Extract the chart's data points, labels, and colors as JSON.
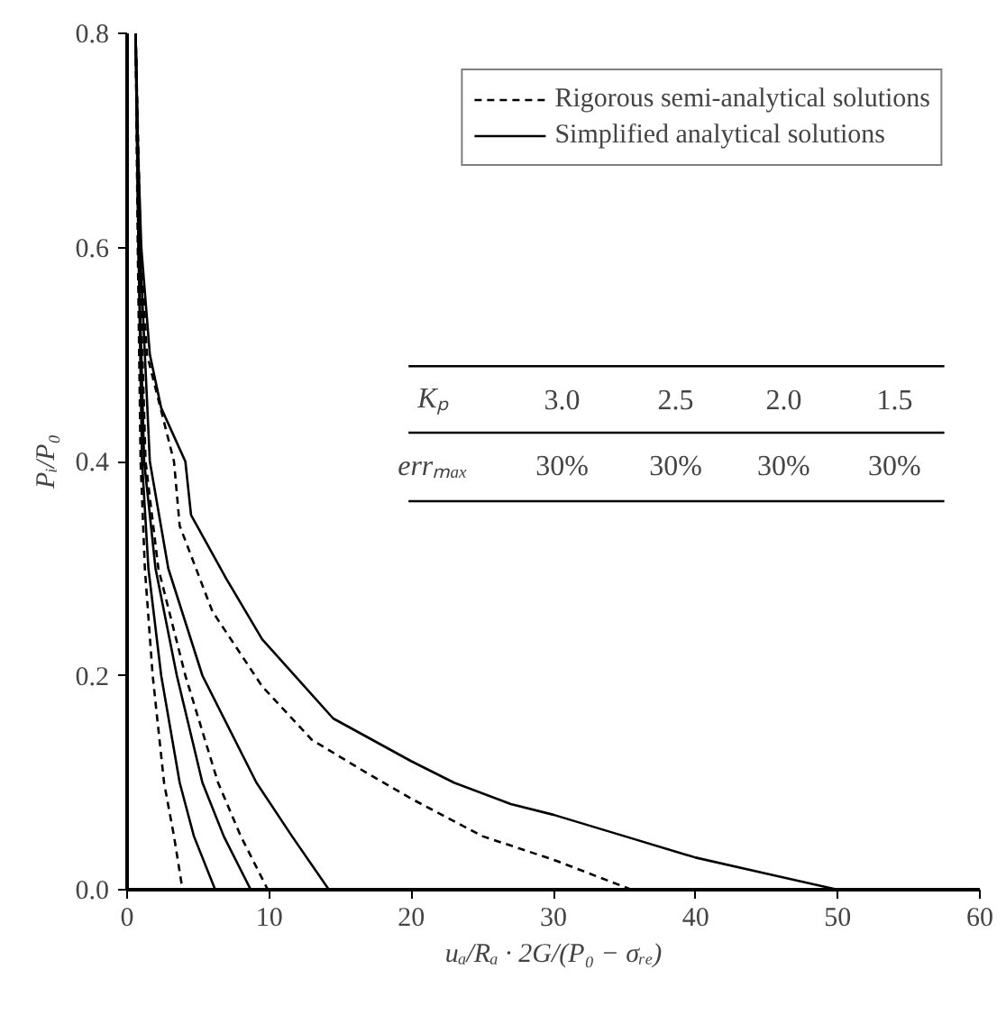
{
  "chart_data": {
    "type": "line",
    "xlabel": "uₐ/Rₐ · 2G/(P₀ − σᵣₑ)",
    "ylabel": "Pᵢ/P₀",
    "xlim": [
      0,
      60
    ],
    "ylim": [
      0,
      0.8
    ],
    "xticks": [
      0,
      10,
      20,
      30,
      40,
      50,
      60
    ],
    "yticks": [
      {
        "value": 0,
        "label": "0.0"
      },
      0.2,
      0.4,
      0.6,
      0.8
    ],
    "grid": false,
    "legend": "top right",
    "marker": "none",
    "annotations": [
      "Kₚ",
      "3.0",
      "2.5",
      "2.0",
      "1.5",
      "errₘₐₓ",
      "30%",
      "30%",
      "30%",
      "30%"
    ],
    "series": [
      {
        "name": "Rigorous semi-analytical solutions",
        "color": "#000000",
        "line_style": "dashed",
        "x": [
          0.6,
          0.95,
          1.4,
          3.3,
          3.7,
          6,
          9.5,
          13,
          17,
          20,
          25,
          30,
          35.5
        ],
        "values": [
          0.8,
          0.6,
          0.5,
          0.4,
          0.34,
          0.26,
          0.19,
          0.14,
          0.108,
          0.085,
          0.05,
          0.028,
          0
        ]
      },
      {
        "name": "Simplified analytical solutions",
        "color": "#000000",
        "line_style": "solid",
        "x": [
          0.6,
          0.75,
          1.0,
          1.6,
          2.4,
          4.1,
          4.5,
          7.0,
          9.5,
          14.5,
          20,
          23,
          27,
          30,
          35,
          40,
          45,
          50
        ],
        "values": [
          0.8,
          0.7,
          0.6,
          0.5,
          0.45,
          0.4,
          0.35,
          0.29,
          0.234,
          0.16,
          0.12,
          0.1,
          0.08,
          0.07,
          0.05,
          0.03,
          0.015,
          0
        ]
      },
      {
        "color": "#000000",
        "line_style": "dashed",
        "x": [
          0.6,
          0.75,
          0.95,
          1.25,
          1.8,
          2.6,
          3.3,
          3.9
        ],
        "values": [
          0.8,
          0.6,
          0.4,
          0.3,
          0.2,
          0.1,
          0.05,
          0
        ]
      },
      {
        "color": "#000000",
        "line_style": "solid",
        "x": [
          0.6,
          0.8,
          1.05,
          1.5,
          2.4,
          3.7,
          4.7,
          6.2
        ],
        "values": [
          0.8,
          0.6,
          0.4,
          0.3,
          0.2,
          0.1,
          0.05,
          0
        ]
      },
      {
        "color": "#000000",
        "line_style": "solid",
        "x": [
          0.6,
          0.8,
          1.2,
          2.0,
          3.5,
          5.3,
          6.8,
          8.7
        ],
        "values": [
          0.8,
          0.6,
          0.4,
          0.3,
          0.2,
          0.1,
          0.05,
          0
        ]
      },
      {
        "color": "#000000",
        "line_style": "dashed",
        "x": [
          0.6,
          0.85,
          1.3,
          2.2,
          4.1,
          6.4,
          8.0,
          9.9
        ],
        "values": [
          0.8,
          0.6,
          0.4,
          0.3,
          0.2,
          0.1,
          0.05,
          0
        ]
      },
      {
        "color": "#000000",
        "line_style": "solid",
        "x": [
          0.6,
          0.9,
          1.6,
          2.9,
          5.3,
          9.1,
          11.6,
          14.2
        ],
        "values": [
          0.8,
          0.6,
          0.4,
          0.3,
          0.2,
          0.1,
          0.05,
          0
        ]
      }
    ]
  }
}
